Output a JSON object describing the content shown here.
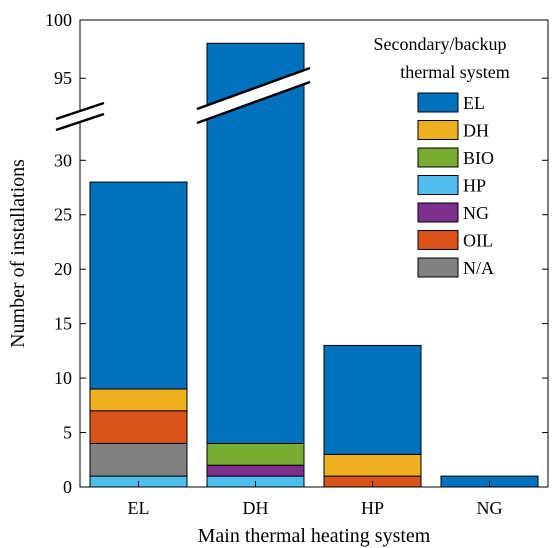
{
  "chart_data": {
    "type": "bar",
    "stacked": true,
    "xlabel": "Main thermal heating system",
    "ylabel": "Number of installations",
    "categories": [
      "EL",
      "DH",
      "HP",
      "NG"
    ],
    "axis_break": {
      "lower_range": [
        0,
        32
      ],
      "upper_range": [
        93,
        100
      ]
    },
    "lower_ticks": [
      "0",
      "5",
      "10",
      "15",
      "20",
      "25",
      "30"
    ],
    "upper_ticks": [
      "95",
      "100"
    ],
    "legend": {
      "title": [
        "Secondary/backup",
        "thermal system"
      ],
      "placement": "top-right"
    },
    "series": [
      {
        "name": "HP",
        "color": "#4DBEEE",
        "values": [
          1,
          1,
          0,
          0
        ]
      },
      {
        "name": "NG",
        "color": "#7E2F8E",
        "values": [
          0,
          1,
          0,
          0
        ]
      },
      {
        "name": "BIO",
        "color": "#77AC30",
        "values": [
          0,
          2,
          0,
          0
        ]
      },
      {
        "name": "N/A",
        "color": "#808080",
        "values": [
          3,
          0,
          0,
          0
        ]
      },
      {
        "name": "OIL",
        "color": "#D95319",
        "values": [
          3,
          0,
          1,
          0
        ]
      },
      {
        "name": "DH",
        "color": "#EDB120",
        "values": [
          2,
          0,
          2,
          0
        ]
      },
      {
        "name": "EL",
        "color": "#0072BD",
        "values": [
          19,
          94,
          10,
          1
        ]
      }
    ],
    "legend_order": [
      "EL",
      "DH",
      "BIO",
      "HP",
      "NG",
      "OIL",
      "N/A"
    ],
    "grid": false
  }
}
